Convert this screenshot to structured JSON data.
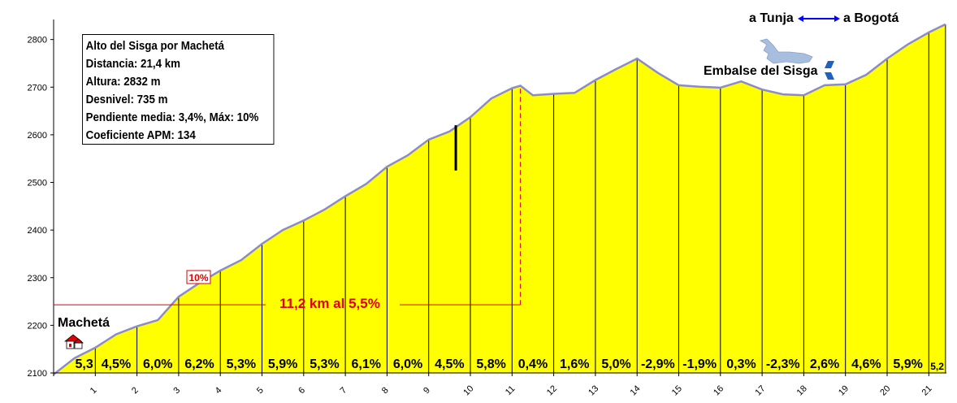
{
  "info": {
    "title": "Alto del Sisga por Machetá",
    "lines": [
      "Distancia: 21,4 km",
      "Altura: 2832 m",
      "Desnivel: 735 m",
      "Pendiente media: 3,4%, Máx: 10%",
      "Coeficiente APM: 134"
    ]
  },
  "labels": {
    "start_town": "Machetá",
    "reservoir": "Embalse del Sisga",
    "dir_left": "a Tunja",
    "dir_right": "a Bogotá",
    "max_badge": "10%",
    "climb_summary": "11,2 km al 5,5%"
  },
  "colors": {
    "fill": "#ffff00",
    "profile_line": "#8a8acc",
    "annotation_red": "#e00000",
    "direction_arrow": "#0000ff",
    "reservoir_water": "#a8bede"
  },
  "icons": [
    "house-icon",
    "reservoir-icon",
    "road-sign-icon",
    "double-arrow-icon"
  ],
  "chart_data": {
    "type": "area",
    "xlim": [
      0,
      21.4
    ],
    "ylim": [
      2100,
      2850
    ],
    "x_ticks": [
      1,
      2,
      3,
      4,
      5,
      6,
      7,
      8,
      9,
      10,
      11,
      12,
      13,
      14,
      15,
      16,
      17,
      18,
      19,
      20,
      21
    ],
    "y_ticks": [
      2100,
      2200,
      2300,
      2400,
      2500,
      2600,
      2700,
      2800
    ],
    "grid": false,
    "profile": {
      "x": [
        0,
        0.5,
        1,
        1.5,
        2,
        2.5,
        3,
        3.5,
        4,
        4.5,
        5,
        5.5,
        6,
        6.5,
        7,
        7.5,
        8,
        8.5,
        9,
        9.5,
        10,
        10.5,
        11,
        11.2,
        11.5,
        12,
        12.5,
        13,
        13.5,
        14,
        14.5,
        15,
        15.5,
        16,
        16.5,
        17,
        17.5,
        18,
        18.5,
        19,
        19.5,
        20,
        20.5,
        21,
        21.4
      ],
      "y": [
        2097,
        2131,
        2153,
        2181,
        2198,
        2211,
        2260,
        2289,
        2315,
        2337,
        2371,
        2400,
        2420,
        2443,
        2471,
        2497,
        2533,
        2557,
        2590,
        2607,
        2637,
        2676,
        2698,
        2703,
        2683,
        2686,
        2688,
        2715,
        2738,
        2760,
        2730,
        2704,
        2701,
        2699,
        2712,
        2695,
        2685,
        2683,
        2704,
        2706,
        2726,
        2760,
        2790,
        2815,
        2832
      ]
    },
    "segments": [
      {
        "km": 1,
        "grade": "5,3"
      },
      {
        "km": 2,
        "grade": "4,5%"
      },
      {
        "km": 3,
        "grade": "6,0%"
      },
      {
        "km": 4,
        "grade": "6,2%"
      },
      {
        "km": 5,
        "grade": "5,3%"
      },
      {
        "km": 6,
        "grade": "5,9%"
      },
      {
        "km": 7,
        "grade": "5,3%"
      },
      {
        "km": 8,
        "grade": "6,1%"
      },
      {
        "km": 9,
        "grade": "6,0%"
      },
      {
        "km": 10,
        "grade": "4,5%"
      },
      {
        "km": 11,
        "grade": "5,8%"
      },
      {
        "km": 12,
        "grade": "0,4%"
      },
      {
        "km": 13,
        "grade": "1,6%"
      },
      {
        "km": 14,
        "grade": "5,0%"
      },
      {
        "km": 15,
        "grade": "-2,9%"
      },
      {
        "km": 16,
        "grade": "-1,9%"
      },
      {
        "km": 17,
        "grade": "0,3%"
      },
      {
        "km": 18,
        "grade": "-2,3%"
      },
      {
        "km": 19,
        "grade": "2,6%"
      },
      {
        "km": 20,
        "grade": "4,6%"
      },
      {
        "km": 21,
        "grade": "5,9%"
      },
      {
        "km": 21.4,
        "grade": "5,2"
      }
    ],
    "annotations": {
      "climb_end_km": 11.2,
      "climb_reference_altitude": 2243,
      "marker_km": 9.65,
      "marker_altitude_range": [
        2525,
        2620
      ]
    }
  }
}
